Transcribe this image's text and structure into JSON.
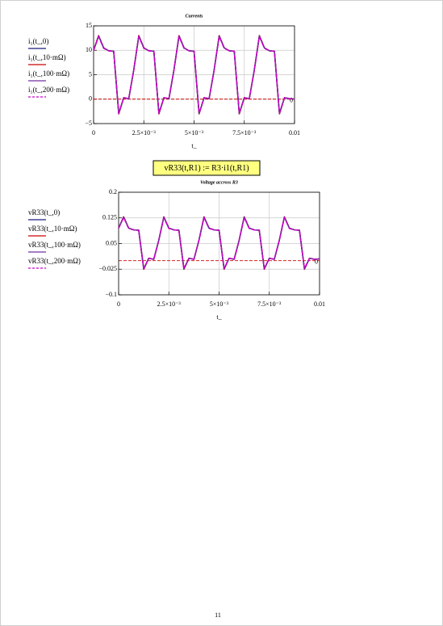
{
  "chart_data": [
    {
      "type": "line",
      "title": "Currents",
      "xlabel": "t_",
      "x": [
        0,
        0.00025,
        0.0005,
        0.00075,
        0.001,
        0.00125,
        0.0015,
        0.00175,
        0.002,
        0.00225,
        0.0025,
        0.00275,
        0.003,
        0.00325,
        0.0035,
        0.00375,
        0.004,
        0.00425,
        0.0045,
        0.00475,
        0.005,
        0.00525,
        0.0055,
        0.00575,
        0.006,
        0.00625,
        0.0065,
        0.00675,
        0.007,
        0.00725,
        0.0075,
        0.00775,
        0.008,
        0.00825,
        0.0085,
        0.00875,
        0.009,
        0.00925,
        0.0095,
        0.00975,
        0.01
      ],
      "series": [
        {
          "name": "i₁(t_,0)",
          "color": "#1a1a80",
          "dash": false,
          "values": [
            10,
            13,
            10.5,
            9.9,
            9.8,
            -3,
            0.3,
            0.1,
            6,
            13,
            10.5,
            9.9,
            9.8,
            -3,
            0.3,
            0.1,
            6,
            13,
            10.5,
            9.9,
            9.8,
            -3,
            0.3,
            0.1,
            6,
            13,
            10.5,
            9.9,
            9.8,
            -3,
            0.3,
            0.1,
            6,
            13,
            10.5,
            9.9,
            9.8,
            -3,
            0.3,
            0.1,
            0
          ]
        },
        {
          "name": "i₁(t_,10·mΩ)",
          "color": "#cc0000",
          "dash": false,
          "values": [
            10,
            13,
            10.5,
            9.9,
            9.8,
            -3,
            0.3,
            0.1,
            6,
            13,
            10.5,
            9.9,
            9.8,
            -3,
            0.3,
            0.1,
            6,
            13,
            10.5,
            9.9,
            9.8,
            -3,
            0.3,
            0.1,
            6,
            13,
            10.5,
            9.9,
            9.8,
            -3,
            0.3,
            0.1,
            6,
            13,
            10.5,
            9.9,
            9.8,
            -3,
            0.3,
            0.1,
            0
          ]
        },
        {
          "name": "i₁(t_,100·mΩ)",
          "color": "#7030a0",
          "dash": false,
          "values": [
            10,
            12.9,
            10.5,
            9.9,
            9.8,
            -2.9,
            0.3,
            0.1,
            6,
            12.9,
            10.5,
            9.9,
            9.8,
            -2.9,
            0.3,
            0.1,
            6,
            12.9,
            10.5,
            9.9,
            9.8,
            -2.9,
            0.3,
            0.1,
            6,
            12.9,
            10.5,
            9.9,
            9.8,
            -2.9,
            0.3,
            0.1,
            6,
            12.9,
            10.5,
            9.9,
            9.8,
            -2.9,
            0.3,
            0.1,
            0
          ]
        },
        {
          "name": "i₁(t_,200·mΩ)",
          "color": "#cc00cc",
          "dash": true,
          "values": [
            10,
            12.8,
            10.4,
            9.9,
            9.8,
            -2.8,
            0.3,
            0.1,
            6,
            12.8,
            10.4,
            9.9,
            9.8,
            -2.8,
            0.3,
            0.1,
            6,
            12.8,
            10.4,
            9.9,
            9.8,
            -2.8,
            0.3,
            0.1,
            6,
            12.8,
            10.4,
            9.9,
            9.8,
            -2.8,
            0.3,
            0.1,
            6,
            12.8,
            10.4,
            9.9,
            9.8,
            -2.8,
            0.3,
            0.1,
            0
          ]
        }
      ],
      "xlim": [
        0,
        0.01
      ],
      "xticks": [
        0,
        {
          "value": 0.0025,
          "label": "2.5×10⁻³"
        },
        {
          "value": 0.005,
          "label": "5×10⁻³"
        },
        {
          "value": 0.0075,
          "label": "7.5×10⁻³"
        },
        0.01
      ],
      "ylim": [
        -5,
        15
      ],
      "yticks": [
        {
          "value": -5,
          "label": "−5"
        },
        0,
        5,
        10,
        15
      ],
      "grid": true,
      "marker": {
        "value": 0,
        "color": "#cc0000"
      }
    },
    {
      "type": "line",
      "title": "Voltage accross R3",
      "xlabel": "t_",
      "x": [
        0,
        0.00025,
        0.0005,
        0.00075,
        0.001,
        0.00125,
        0.0015,
        0.00175,
        0.002,
        0.00225,
        0.0025,
        0.00275,
        0.003,
        0.00325,
        0.0035,
        0.00375,
        0.004,
        0.00425,
        0.0045,
        0.00475,
        0.005,
        0.00525,
        0.0055,
        0.00575,
        0.006,
        0.00625,
        0.0065,
        0.00675,
        0.007,
        0.00725,
        0.0075,
        0.00775,
        0.008,
        0.00825,
        0.0085,
        0.00875,
        0.009,
        0.00925,
        0.0095,
        0.00975,
        0.01
      ],
      "series": [
        {
          "name": "vR33(t_,0)",
          "color": "#1a1a80",
          "dash": false,
          "values": [
            0.095,
            0.128,
            0.095,
            0.09,
            0.089,
            -0.025,
            0.007,
            0.004,
            0.06,
            0.128,
            0.095,
            0.09,
            0.089,
            -0.025,
            0.007,
            0.004,
            0.06,
            0.128,
            0.095,
            0.09,
            0.089,
            -0.025,
            0.007,
            0.004,
            0.06,
            0.128,
            0.095,
            0.09,
            0.089,
            -0.025,
            0.007,
            0.004,
            0.06,
            0.128,
            0.095,
            0.09,
            0.089,
            -0.025,
            0.007,
            0.004,
            0.005
          ]
        },
        {
          "name": "vR33(t_,10·mΩ)",
          "color": "#cc0000",
          "dash": false,
          "values": [
            0.095,
            0.128,
            0.095,
            0.09,
            0.089,
            -0.025,
            0.007,
            0.004,
            0.06,
            0.128,
            0.095,
            0.09,
            0.089,
            -0.025,
            0.007,
            0.004,
            0.06,
            0.128,
            0.095,
            0.09,
            0.089,
            -0.025,
            0.007,
            0.004,
            0.06,
            0.128,
            0.095,
            0.09,
            0.089,
            -0.025,
            0.007,
            0.004,
            0.06,
            0.128,
            0.095,
            0.09,
            0.089,
            -0.025,
            0.007,
            0.004,
            0.005
          ]
        },
        {
          "name": "vR33(t_,100·mΩ)",
          "color": "#7030a0",
          "dash": false,
          "values": [
            0.095,
            0.127,
            0.095,
            0.09,
            0.089,
            -0.024,
            0.007,
            0.004,
            0.06,
            0.127,
            0.095,
            0.09,
            0.089,
            -0.024,
            0.007,
            0.004,
            0.06,
            0.127,
            0.095,
            0.09,
            0.089,
            -0.024,
            0.007,
            0.004,
            0.06,
            0.127,
            0.095,
            0.09,
            0.089,
            -0.024,
            0.007,
            0.004,
            0.06,
            0.127,
            0.095,
            0.09,
            0.089,
            -0.024,
            0.007,
            0.004,
            0.005
          ]
        },
        {
          "name": "vR33(t_,200·mΩ)",
          "color": "#cc00cc",
          "dash": true,
          "values": [
            0.095,
            0.126,
            0.094,
            0.09,
            0.089,
            -0.023,
            0.007,
            0.004,
            0.06,
            0.126,
            0.094,
            0.09,
            0.089,
            -0.023,
            0.007,
            0.004,
            0.06,
            0.126,
            0.094,
            0.09,
            0.089,
            -0.023,
            0.007,
            0.004,
            0.06,
            0.126,
            0.094,
            0.09,
            0.089,
            -0.023,
            0.007,
            0.004,
            0.06,
            0.126,
            0.094,
            0.09,
            0.089,
            -0.023,
            0.007,
            0.004,
            0.005
          ]
        }
      ],
      "xlim": [
        0,
        0.01
      ],
      "xticks": [
        0,
        {
          "value": 0.0025,
          "label": "2.5×10⁻³"
        },
        {
          "value": 0.005,
          "label": "5×10⁻³"
        },
        {
          "value": 0.0075,
          "label": "7.5×10⁻³"
        },
        0.01
      ],
      "ylim": [
        -0.1,
        0.2
      ],
      "yticks": [
        {
          "value": -0.1,
          "label": "−0.1"
        },
        {
          "value": -0.025,
          "label": "−0.025"
        },
        0.05,
        0.125,
        0.2
      ],
      "grid": true,
      "marker": {
        "value": 0,
        "color": "#cc0000"
      }
    }
  ],
  "formula": "vR33(t,R1) := R3·i1(t,R1)",
  "page_number": "11"
}
